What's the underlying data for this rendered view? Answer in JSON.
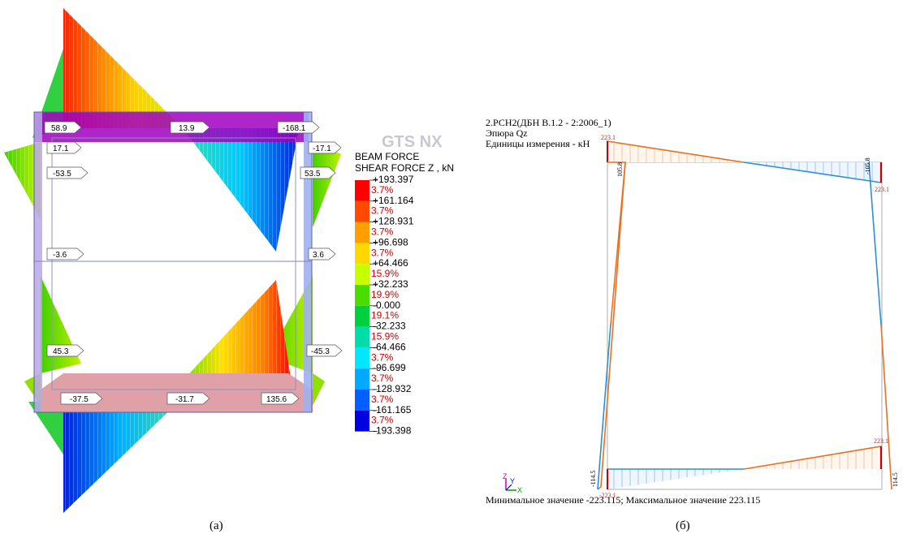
{
  "panel_a": {
    "caption": "(a)",
    "logo_text": "GTS NX",
    "legend": {
      "title_line1": "BEAM FORCE",
      "title_line2": "SHEAR FORCE Z , kN",
      "values": [
        "+193.397",
        "+161.164",
        "+128.931",
        "+96.698",
        "+64.466",
        "+32.233",
        "-0.000",
        "-32.233",
        "-64.466",
        "-96.699",
        "-128.932",
        "-161.165",
        "-193.398"
      ],
      "percents": [
        "3.7%",
        "3.7%",
        "3.7%",
        "3.7%",
        "15.9%",
        "19.9%",
        "19.1%",
        "15.9%",
        "3.7%",
        "3.7%",
        "3.7%",
        "3.7%"
      ],
      "colors": [
        "#ff0000",
        "#ff4a00",
        "#ff9f00",
        "#ffd800",
        "#c8ff00",
        "#4cdd00",
        "#00d040",
        "#00dcaa",
        "#00e8ff",
        "#00aaff",
        "#0060ff",
        "#0000e0"
      ]
    },
    "labels": {
      "top_left": "58.9",
      "top_mid": "13.9",
      "top_right": "-168.1",
      "left_1": "17.1",
      "left_2": "-53.5",
      "left_3": "-3.6",
      "left_4": "45.3",
      "right_1": "-17.1",
      "right_2": "53.5",
      "right_3": "3.6",
      "right_4": "-45.3",
      "bot_left": "-37.5",
      "bot_mid": "-31.7",
      "bot_right": "135.6"
    }
  },
  "panel_b": {
    "caption": "(б)",
    "header_line1": "2.РСН2(ДБН В.1.2 - 2:2006_1)",
    "header_line2": "Эпюра Qz",
    "header_line3": "Единицы измерения - кН",
    "footer": "Минимальное значение  -223.115; Максимальное значение  223.115",
    "labels": {
      "tl_top": "223.1",
      "tl_side": "105.8",
      "tr_side": "-105.8",
      "tr_low": "223.1",
      "bl_side": "-114.5",
      "bl_low": "-223.1",
      "br_top": "223.1",
      "br_side": "114.5"
    },
    "axes": {
      "z": "Z",
      "y": "Y",
      "x": "X"
    }
  }
}
